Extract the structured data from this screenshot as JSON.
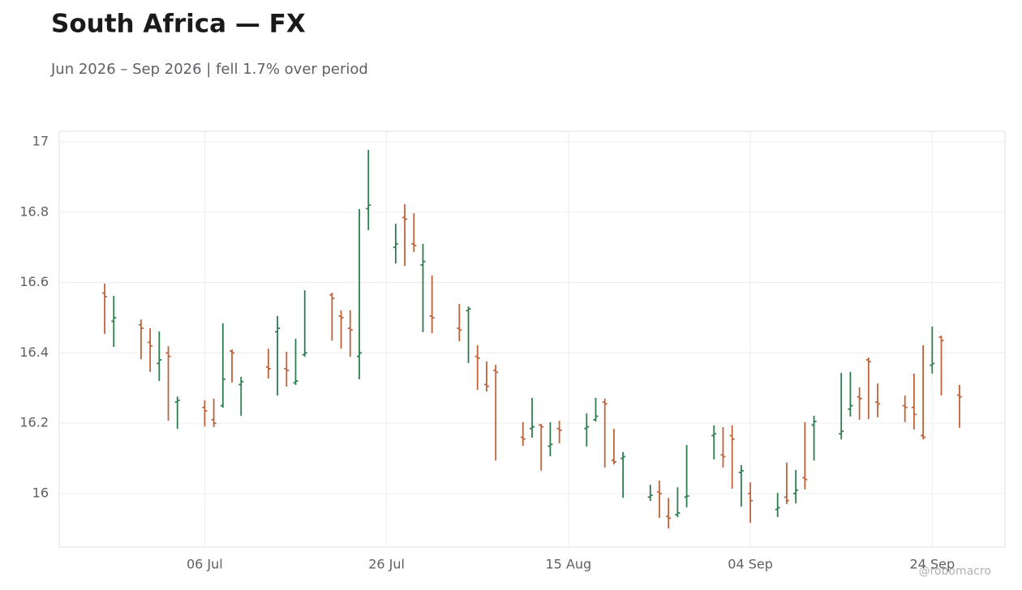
{
  "chart_data": {
    "type": "ohlc",
    "title": "South Africa — FX",
    "subtitle": "Jun 2026 – Sep 2026 | fell 1.7% over period",
    "watermark": "@robomacro",
    "up_color": "#2e7d4f",
    "down_color": "#c0623a",
    "grid": true,
    "xlim": [
      "2026-06-20",
      "2026-10-02"
    ],
    "xticks": [
      {
        "value": "2026-07-06",
        "label": "06 Jul"
      },
      {
        "value": "2026-07-26",
        "label": "26 Jul"
      },
      {
        "value": "2026-08-15",
        "label": "15 Aug"
      },
      {
        "value": "2026-09-04",
        "label": "04 Sep"
      },
      {
        "value": "2026-09-24",
        "label": "24 Sep"
      }
    ],
    "ylim": [
      15.848,
      17.03
    ],
    "yticks": [
      16,
      16.2,
      16.4,
      16.6,
      16.8,
      17
    ],
    "x": [
      "2026-06-25",
      "2026-06-26",
      "2026-06-29",
      "2026-06-30",
      "2026-07-01",
      "2026-07-02",
      "2026-07-03",
      "2026-07-06",
      "2026-07-07",
      "2026-07-08",
      "2026-07-09",
      "2026-07-10",
      "2026-07-13",
      "2026-07-14",
      "2026-07-15",
      "2026-07-16",
      "2026-07-17",
      "2026-07-20",
      "2026-07-21",
      "2026-07-22",
      "2026-07-23",
      "2026-07-24",
      "2026-07-27",
      "2026-07-28",
      "2026-07-29",
      "2026-07-30",
      "2026-07-31",
      "2026-08-03",
      "2026-08-04",
      "2026-08-05",
      "2026-08-06",
      "2026-08-07",
      "2026-08-10",
      "2026-08-11",
      "2026-08-12",
      "2026-08-13",
      "2026-08-14",
      "2026-08-17",
      "2026-08-18",
      "2026-08-19",
      "2026-08-20",
      "2026-08-21",
      "2026-08-24",
      "2026-08-25",
      "2026-08-26",
      "2026-08-27",
      "2026-08-28",
      "2026-08-31",
      "2026-09-01",
      "2026-09-02",
      "2026-09-03",
      "2026-09-04",
      "2026-09-07",
      "2026-09-08",
      "2026-09-09",
      "2026-09-10",
      "2026-09-11",
      "2026-09-14",
      "2026-09-15",
      "2026-09-16",
      "2026-09-17",
      "2026-09-18",
      "2026-09-21",
      "2026-09-22",
      "2026-09-23",
      "2026-09-24",
      "2026-09-25",
      "2026-09-27"
    ],
    "open": [
      16.57,
      16.49,
      16.48,
      16.43,
      16.37,
      16.4,
      16.26,
      16.245,
      16.21,
      16.25,
      16.405,
      16.31,
      16.36,
      16.46,
      16.355,
      16.315,
      16.395,
      16.565,
      16.505,
      16.47,
      16.39,
      16.81,
      16.7,
      16.785,
      16.71,
      16.65,
      16.505,
      16.47,
      16.52,
      16.39,
      16.31,
      16.35,
      16.16,
      16.185,
      16.195,
      16.135,
      16.185,
      16.185,
      16.21,
      16.26,
      16.095,
      16.1,
      15.99,
      16.005,
      15.935,
      15.94,
      15.99,
      16.165,
      16.11,
      16.165,
      16.06,
      16.0,
      15.955,
      15.99,
      16.0,
      16.045,
      16.195,
      16.17,
      16.24,
      16.275,
      16.38,
      16.26,
      16.25,
      16.245,
      16.165,
      16.365,
      16.445,
      16.28
    ],
    "high": [
      16.597,
      16.562,
      16.495,
      16.47,
      16.461,
      16.419,
      16.276,
      16.265,
      16.27,
      16.484,
      16.41,
      16.332,
      16.412,
      16.505,
      16.403,
      16.44,
      16.578,
      16.571,
      16.521,
      16.521,
      16.809,
      16.977,
      16.767,
      16.823,
      16.797,
      16.71,
      16.62,
      16.539,
      16.532,
      16.422,
      16.376,
      16.366,
      16.203,
      16.272,
      16.198,
      16.203,
      16.207,
      16.228,
      16.272,
      16.27,
      16.184,
      16.118,
      16.025,
      16.037,
      15.988,
      16.018,
      16.138,
      16.194,
      16.189,
      16.194,
      16.081,
      16.032,
      16.002,
      16.088,
      16.067,
      16.203,
      16.221,
      16.343,
      16.346,
      16.302,
      16.387,
      16.313,
      16.279,
      16.341,
      16.422,
      16.475,
      16.449,
      16.309
    ],
    "low": [
      16.454,
      16.417,
      16.382,
      16.346,
      16.32,
      16.207,
      16.184,
      16.191,
      16.189,
      16.244,
      16.316,
      16.221,
      16.327,
      16.279,
      16.304,
      16.309,
      16.389,
      16.435,
      16.412,
      16.389,
      16.325,
      16.749,
      16.654,
      16.647,
      16.687,
      16.459,
      16.456,
      16.433,
      16.371,
      16.295,
      16.29,
      16.094,
      16.136,
      16.159,
      16.065,
      16.106,
      16.143,
      16.134,
      16.205,
      16.074,
      16.083,
      15.988,
      15.979,
      15.931,
      15.901,
      15.933,
      15.961,
      16.097,
      16.074,
      16.014,
      15.963,
      15.917,
      15.933,
      15.97,
      15.972,
      16.012,
      16.094,
      16.154,
      16.219,
      16.21,
      16.212,
      16.217,
      16.203,
      16.182,
      16.154,
      16.341,
      16.279,
      16.187
    ],
    "close": [
      16.56,
      16.5,
      16.47,
      16.42,
      16.38,
      16.39,
      16.265,
      16.235,
      16.2,
      16.325,
      16.4,
      16.318,
      16.355,
      16.47,
      16.35,
      16.32,
      16.4,
      16.555,
      16.5,
      16.465,
      16.4,
      16.82,
      16.71,
      16.78,
      16.705,
      16.66,
      16.5,
      16.465,
      16.525,
      16.385,
      16.305,
      16.345,
      16.155,
      16.19,
      16.19,
      16.14,
      16.18,
      16.19,
      16.22,
      16.255,
      16.09,
      16.105,
      15.995,
      16.0,
      15.93,
      15.945,
      15.993,
      16.17,
      16.105,
      16.155,
      16.065,
      15.98,
      15.96,
      15.98,
      16.01,
      16.04,
      16.205,
      16.177,
      16.25,
      16.27,
      16.375,
      16.255,
      16.245,
      16.225,
      16.16,
      16.37,
      16.435,
      16.275
    ]
  }
}
